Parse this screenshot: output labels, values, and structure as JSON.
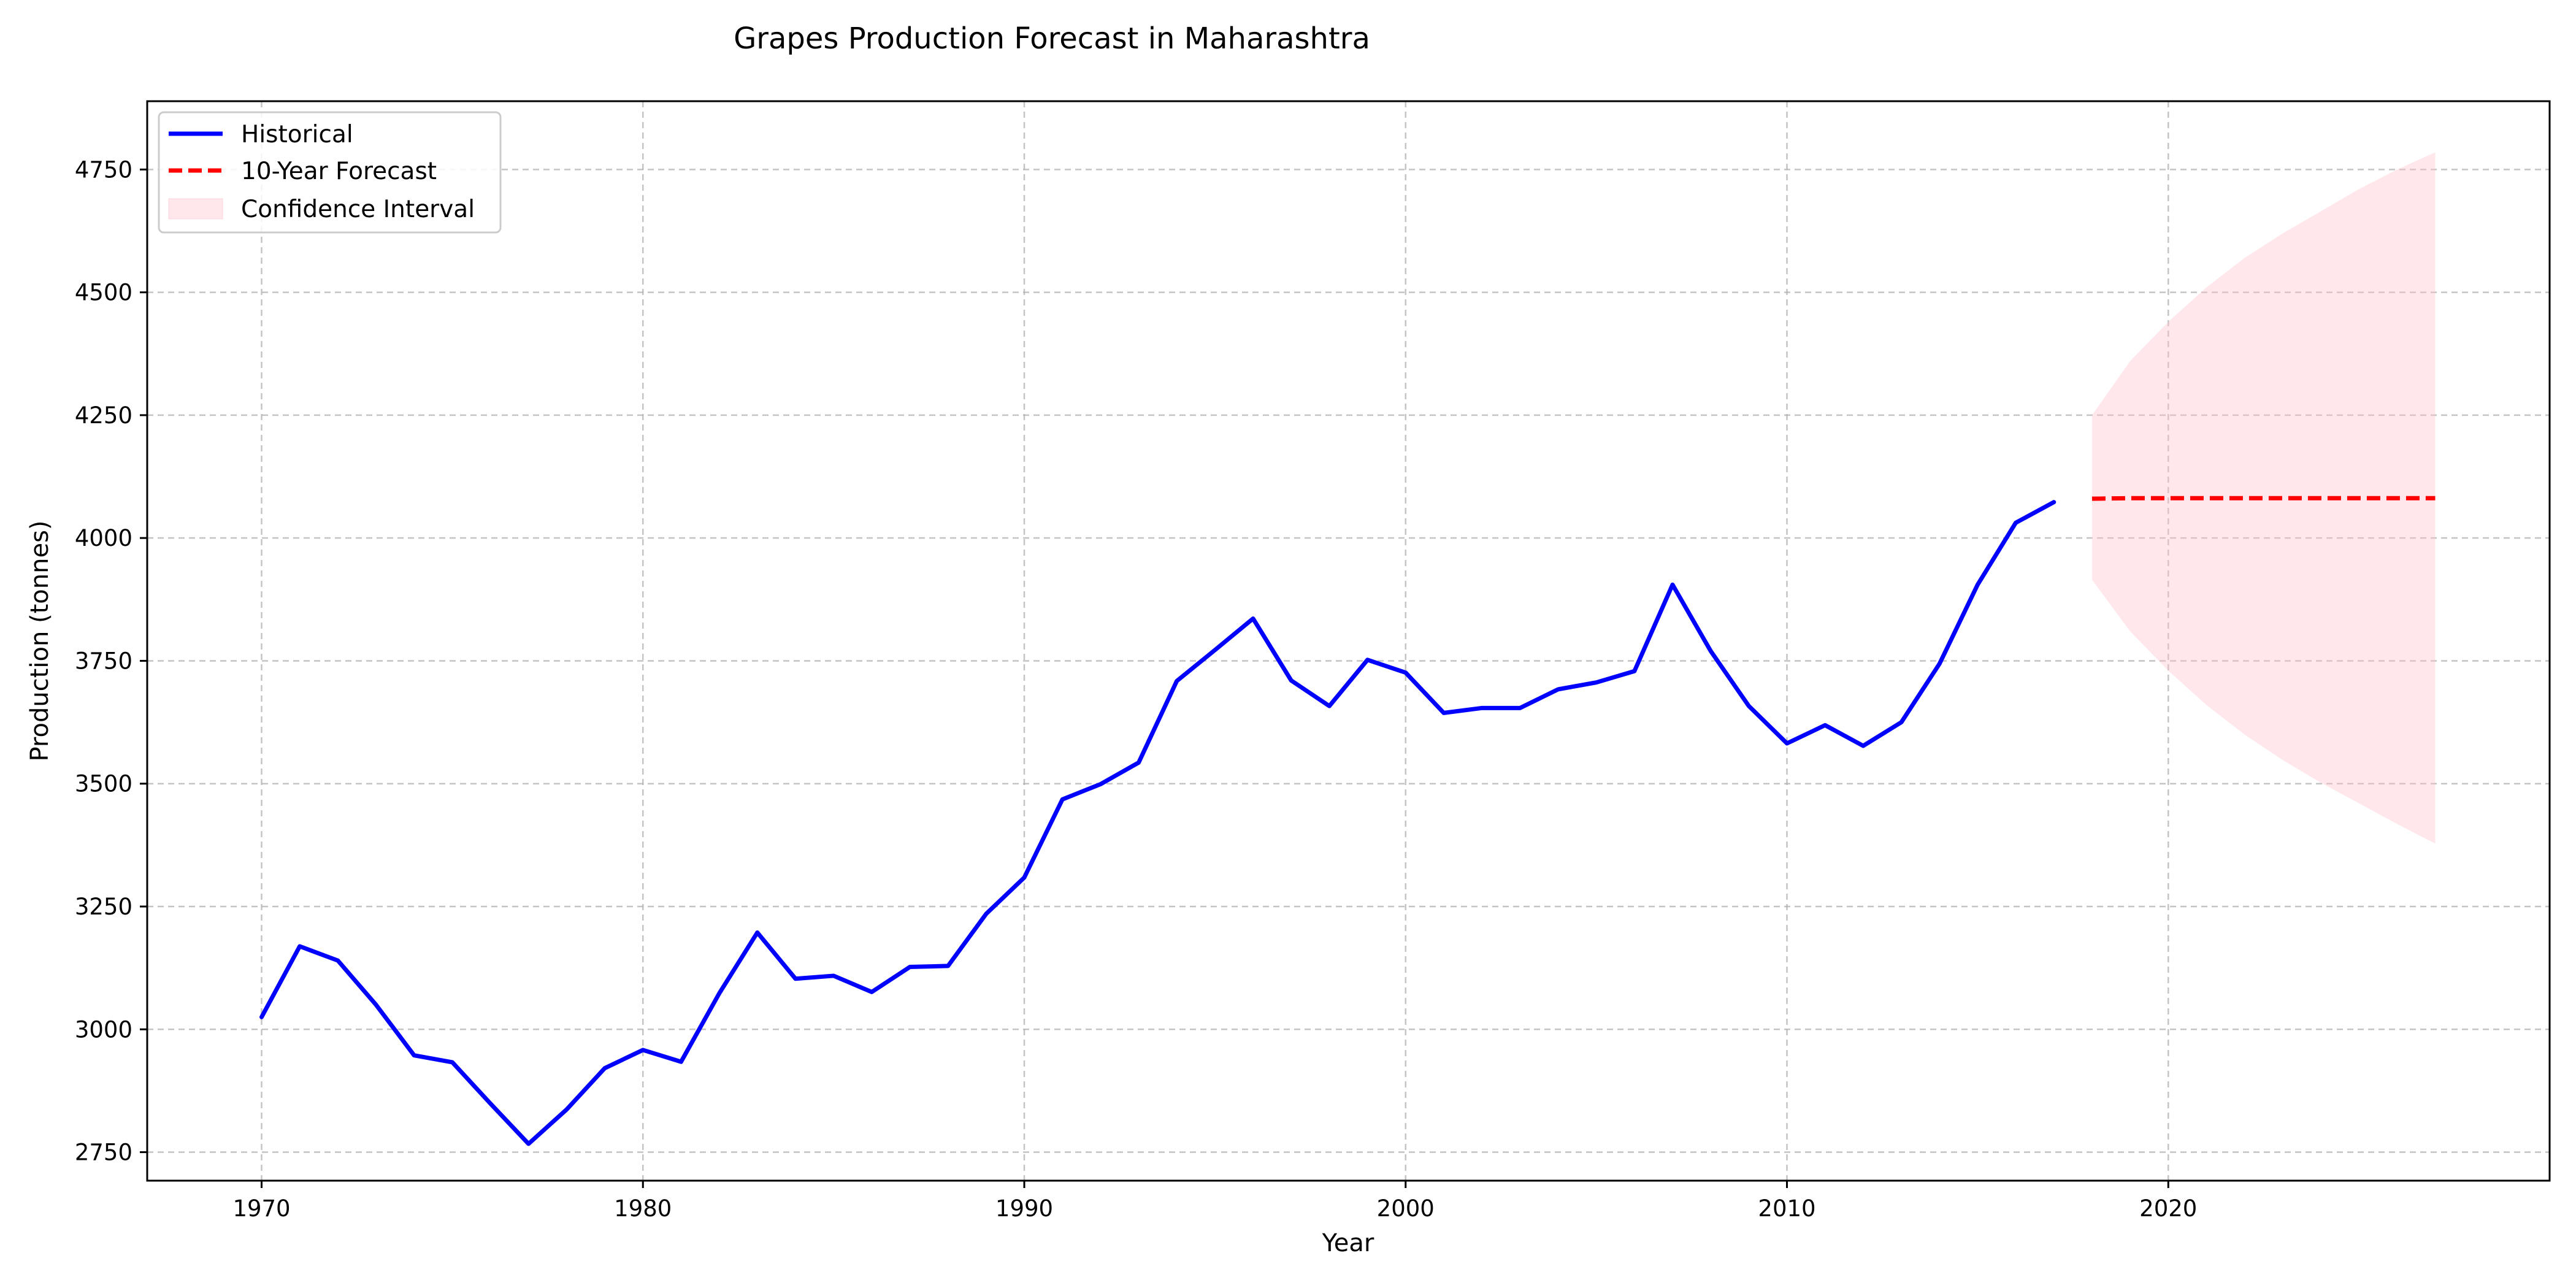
{
  "chart_data": {
    "type": "line",
    "title": "Grapes Production Forecast in Maharashtra",
    "xlabel": "Year",
    "ylabel": "Production (tonnes)",
    "xlim": [
      1967,
      2030
    ],
    "ylim": [
      2692,
      4889
    ],
    "xticks": [
      1970,
      1980,
      1990,
      2000,
      2010,
      2020
    ],
    "yticks": [
      2750,
      3000,
      3250,
      3500,
      3750,
      4000,
      4250,
      4500,
      4750
    ],
    "grid": true,
    "legend_position": "top-left",
    "legend": [
      "Historical",
      "10-Year Forecast",
      "Confidence Interval"
    ],
    "colors": {
      "historical": "#0000ff",
      "forecast": "#ff0000",
      "confidence_fill": "#ffc0cb",
      "grid": "#b0b0b0"
    },
    "series": [
      {
        "name": "Historical",
        "style": "solid",
        "x": [
          1970,
          1971,
          1972,
          1973,
          1974,
          1975,
          1976,
          1977,
          1978,
          1979,
          1980,
          1981,
          1982,
          1983,
          1984,
          1985,
          1986,
          1987,
          1988,
          1989,
          1990,
          1991,
          1992,
          1993,
          1994,
          1995,
          1996,
          1997,
          1998,
          1999,
          2000,
          2001,
          2002,
          2003,
          2004,
          2005,
          2006,
          2007,
          2008,
          2009,
          2010,
          2011,
          2012,
          2013,
          2014,
          2015,
          2016,
          2017
        ],
        "y": [
          3025,
          3169,
          3140,
          3050,
          2947,
          2933,
          2849,
          2767,
          2837,
          2921,
          2958,
          2934,
          3073,
          3197,
          3103,
          3109,
          3076,
          3127,
          3129,
          3235,
          3309,
          3468,
          3499,
          3543,
          3709,
          3772,
          3836,
          3710,
          3658,
          3752,
          3726,
          3644,
          3654,
          3654,
          3692,
          3706,
          3729,
          3905,
          3770,
          3658,
          3582,
          3619,
          3577,
          3625,
          3744,
          3905,
          4031,
          4073
        ]
      },
      {
        "name": "10-Year Forecast",
        "style": "dashed",
        "x": [
          2018,
          2019,
          2020,
          2021,
          2022,
          2023,
          2024,
          2025,
          2026,
          2027
        ],
        "y": [
          4080,
          4081,
          4081,
          4081,
          4081,
          4081,
          4081,
          4081,
          4081,
          4081
        ]
      },
      {
        "name": "Confidence Interval",
        "style": "band",
        "x": [
          2018,
          2019,
          2020,
          2021,
          2022,
          2023,
          2024,
          2025,
          2026,
          2027
        ],
        "lower": [
          3915,
          3810,
          3730,
          3660,
          3600,
          3548,
          3502,
          3460,
          3418,
          3378
        ],
        "upper": [
          4250,
          4360,
          4440,
          4510,
          4570,
          4620,
          4665,
          4710,
          4750,
          4785
        ]
      }
    ]
  }
}
